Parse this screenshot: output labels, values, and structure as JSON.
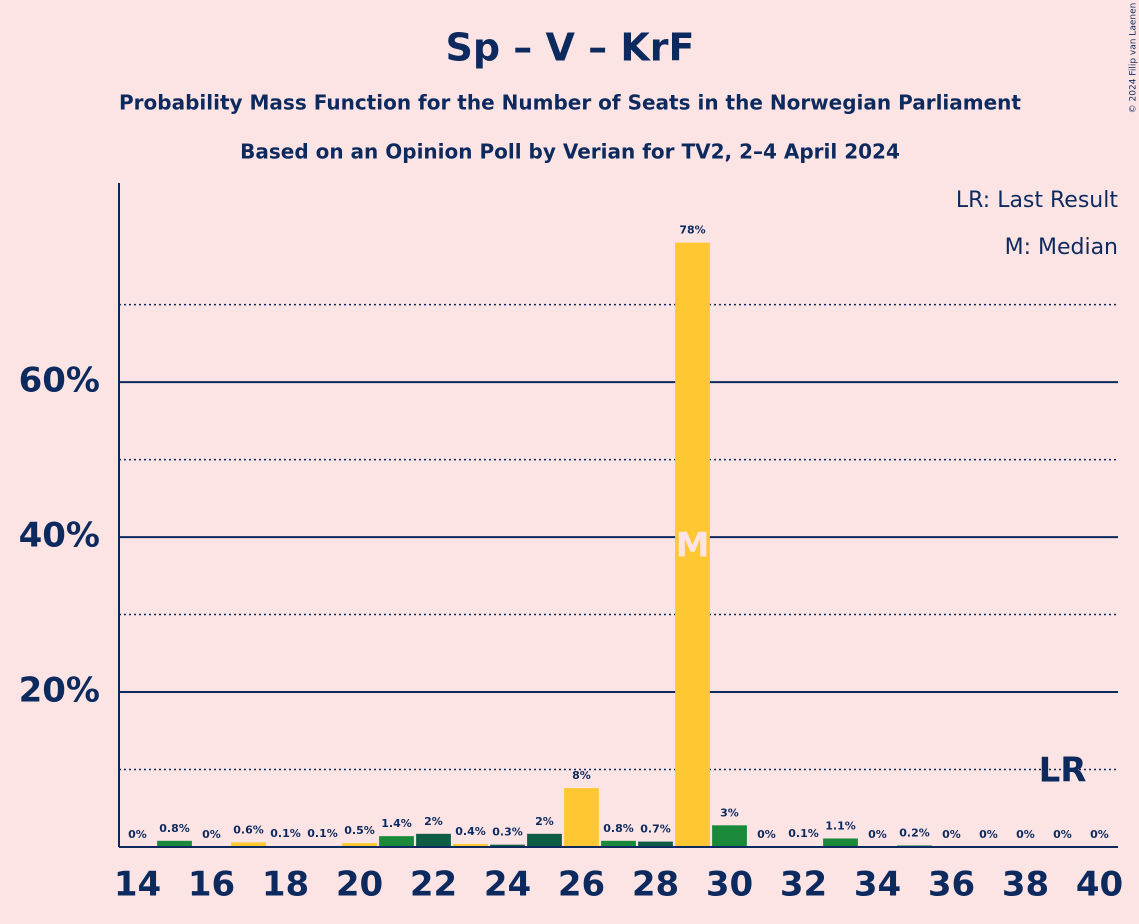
{
  "chart_data": {
    "type": "bar",
    "title": "Sp – V – KrF",
    "subtitle": "Probability Mass Function for the Number of Seats in the Norwegian Parliament",
    "subtitle2": "Based on an Opinion Poll by Verian for TV2, 2–4 April 2024",
    "legend": [
      "LR: Last Result",
      "M: Median"
    ],
    "copyright": "© 2024 Filip van Laenen",
    "x": [
      14,
      15,
      16,
      17,
      18,
      19,
      20,
      21,
      22,
      23,
      24,
      25,
      26,
      27,
      28,
      29,
      30,
      31,
      32,
      33,
      34,
      35,
      36,
      37,
      38,
      39,
      40
    ],
    "values": [
      0,
      0.8,
      0,
      0.6,
      0.1,
      0.1,
      0.5,
      1.4,
      1.7,
      0.4,
      0.3,
      1.7,
      7.6,
      0.8,
      0.7,
      78,
      2.8,
      0,
      0.1,
      1.1,
      0,
      0.2,
      0,
      0,
      0,
      0,
      0
    ],
    "value_labels": [
      "0%",
      "0.8%",
      "0%",
      "0.6%",
      "0.1%",
      "0.1%",
      "0.5%",
      "1.4%",
      "2%",
      "0.4%",
      "0.3%",
      "2%",
      "8%",
      "0.8%",
      "0.7%",
      "78%",
      "3%",
      "0%",
      "0.1%",
      "1.1%",
      "0%",
      "0.2%",
      "0%",
      "0%",
      "0%",
      "0%",
      "0%"
    ],
    "colors": [
      "#1a8a3a",
      "#1a8a3a",
      "#1a8a3a",
      "#ffc832",
      "#1a8a3a",
      "#1a8a3a",
      "#ffc832",
      "#1a8a3a",
      "#0f5c45",
      "#ffc832",
      "#0f5c45",
      "#0f5c45",
      "#ffc832",
      "#1a8a3a",
      "#0f5c45",
      "#ffc832",
      "#1a8a3a",
      "#1a8a3a",
      "#1a8a3a",
      "#1a8a3a",
      "#1a8a3a",
      "#1a8a3a",
      "#1a8a3a",
      "#1a8a3a",
      "#1a8a3a",
      "#1a8a3a",
      "#1a8a3a"
    ],
    "xlim": [
      13.5,
      40.5
    ],
    "xticks": [
      14,
      16,
      18,
      20,
      22,
      24,
      26,
      28,
      30,
      32,
      34,
      36,
      38,
      40
    ],
    "ylim": [
      0,
      85.7
    ],
    "yticks": [
      {
        "value": 20,
        "label": "20%"
      },
      {
        "value": 40,
        "label": "40%"
      },
      {
        "value": 60,
        "label": "60%"
      }
    ],
    "minor_grid": [
      10,
      30,
      50,
      70
    ],
    "annotations": [
      {
        "text": "M",
        "x": 29
      },
      {
        "text": "LR",
        "x": 39
      }
    ]
  }
}
